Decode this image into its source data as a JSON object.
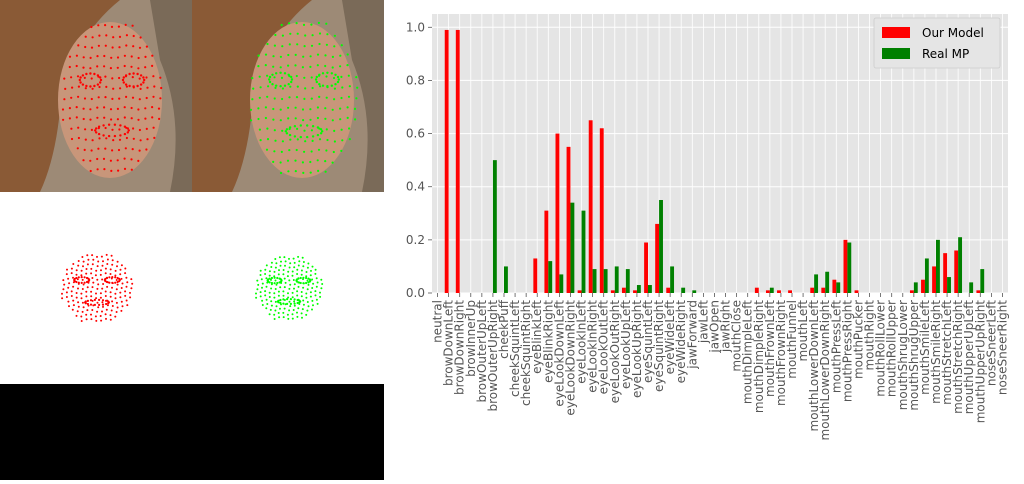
{
  "colors": {
    "model": "#ff0000",
    "real": "#008000",
    "plot_bg": "#e5e5e5",
    "grid": "#ffffff",
    "tick_text": "#555555",
    "skin": "#b98a6e",
    "hair": "#8a5a36",
    "photo_bg": "#a58f78"
  },
  "chart_data": {
    "type": "bar",
    "title": "",
    "xlabel": "",
    "ylabel": "",
    "ylim": [
      0,
      1.05
    ],
    "yticks": [
      "0.0",
      "0.2",
      "0.4",
      "0.6",
      "0.8",
      "1.0"
    ],
    "grid": true,
    "legend": "top-right",
    "categories": [
      "neutral",
      "browDownLeft",
      "browDownRight",
      "browInnerUp",
      "browOuterUpLeft",
      "browOuterUpRight",
      "cheekPuff",
      "cheekSquintLeft",
      "cheekSquintRight",
      "eyeBlinkLeft",
      "eyeBlinkRight",
      "eyeLookDownLeft",
      "eyeLookDownRight",
      "eyeLookInLeft",
      "eyeLookInRight",
      "eyeLookOutLeft",
      "eyeLookOutRight",
      "eyeLookUpLeft",
      "eyeLookUpRight",
      "eyeSquintLeft",
      "eyeSquintRight",
      "eyeWideLeft",
      "eyeWideRight",
      "jawForward",
      "jawLeft",
      "jawOpen",
      "jawRight",
      "mouthClose",
      "mouthDimpleLeft",
      "mouthDimpleRight",
      "mouthFrownLeft",
      "mouthFrownRight",
      "mouthFunnel",
      "mouthLeft",
      "mouthLowerDownLeft",
      "mouthLowerDownRight",
      "mouthPressLeft",
      "mouthPressRight",
      "mouthPucker",
      "mouthRight",
      "mouthRollLower",
      "mouthRollUpper",
      "mouthShrugLower",
      "mouthShrugUpper",
      "mouthSmileLeft",
      "mouthSmileRight",
      "mouthStretchLeft",
      "mouthStretchRight",
      "mouthUpperUpLeft",
      "mouthUpperUpRight",
      "noseSneerLeft",
      "noseSneerRight"
    ],
    "series": [
      {
        "name": "Our Model",
        "values": [
          0.0,
          0.99,
          0.99,
          0.0,
          0.0,
          0.0,
          0.0,
          0.0,
          0.0,
          0.13,
          0.31,
          0.6,
          0.55,
          0.01,
          0.65,
          0.62,
          0.01,
          0.02,
          0.01,
          0.19,
          0.26,
          0.02,
          0.0,
          0.0,
          0.0,
          0.0,
          0.0,
          0.0,
          0.0,
          0.02,
          0.01,
          0.01,
          0.01,
          0.0,
          0.02,
          0.02,
          0.05,
          0.2,
          0.01,
          0.0,
          0.0,
          0.0,
          0.0,
          0.01,
          0.05,
          0.1,
          0.15,
          0.16,
          0.0,
          0.01,
          0.0,
          0.0
        ]
      },
      {
        "name": "Real MP",
        "values": [
          0.0,
          0.0,
          0.0,
          0.0,
          0.0,
          0.5,
          0.1,
          0.0,
          0.0,
          0.0,
          0.12,
          0.07,
          0.34,
          0.31,
          0.09,
          0.09,
          0.1,
          0.09,
          0.03,
          0.03,
          0.35,
          0.1,
          0.02,
          0.01,
          0.0,
          0.0,
          0.0,
          0.0,
          0.0,
          0.0,
          0.02,
          0.0,
          0.0,
          0.0,
          0.07,
          0.08,
          0.04,
          0.19,
          0.0,
          0.0,
          0.0,
          0.0,
          0.0,
          0.04,
          0.13,
          0.2,
          0.06,
          0.21,
          0.04,
          0.09,
          0.0,
          0.0
        ]
      }
    ]
  }
}
